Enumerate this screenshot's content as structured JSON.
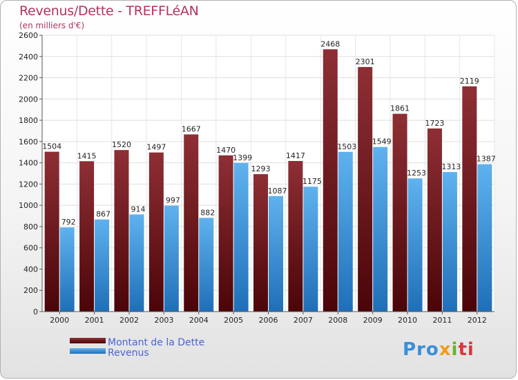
{
  "chart_data": {
    "type": "bar",
    "title": "Revenus/Dette - TREFFLéAN",
    "subtitle": "(en milliers d'€)",
    "categories": [
      "2000",
      "2001",
      "2002",
      "2003",
      "2004",
      "2005",
      "2006",
      "2007",
      "2008",
      "2009",
      "2010",
      "2011",
      "2012"
    ],
    "series": [
      {
        "name": "Montant de la Dette",
        "color": "#7a1a22",
        "values": [
          1504,
          1415,
          1520,
          1497,
          1667,
          1470,
          1293,
          1417,
          2468,
          2301,
          1861,
          1723,
          2119
        ]
      },
      {
        "name": "Revenus",
        "color": "#4fa3e6",
        "values": [
          792,
          867,
          914,
          997,
          882,
          1399,
          1087,
          1175,
          1503,
          1549,
          1253,
          1313,
          1387
        ]
      }
    ],
    "ylim": [
      0,
      2600
    ],
    "yticks": [
      0,
      200,
      400,
      600,
      800,
      1000,
      1200,
      1400,
      1600,
      1800,
      2000,
      2200,
      2400,
      2600
    ],
    "grid": true,
    "legend_position": "bottom-left"
  },
  "logo": {
    "text": "Proxiti",
    "parts": [
      "Pro",
      "x",
      "i",
      "ti"
    ]
  }
}
